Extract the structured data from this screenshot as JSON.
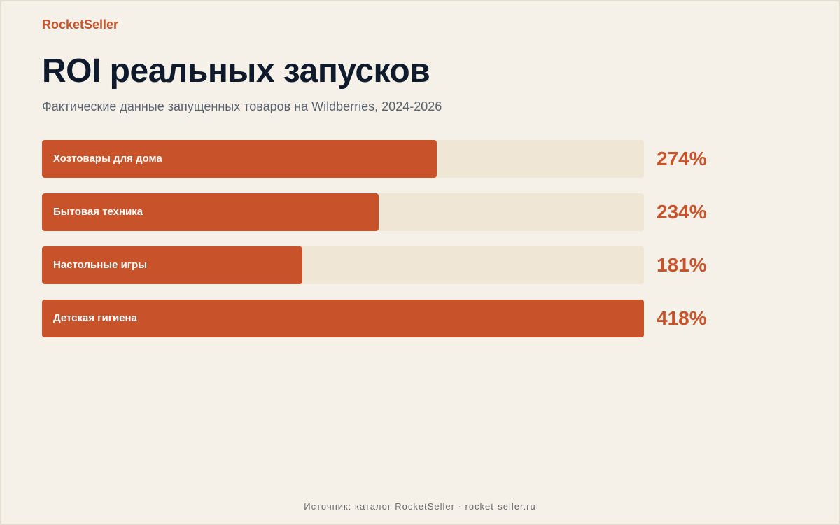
{
  "brand": "RocketSeller",
  "title": "ROI реальных запусков",
  "subtitle": "Фактические данные запущенных товаров на Wildberries, 2024-2026",
  "footer": "Источник: каталог RocketSeller · rocket-seller.ru",
  "colors": {
    "accent": "#c8522a",
    "track": "#efe6d6",
    "background": "#f5f0e8",
    "title": "#0f1b2d"
  },
  "chart_data": {
    "type": "bar",
    "orientation": "horizontal",
    "categories": [
      "Хозтовары для дома",
      "Бытовая техника",
      "Настольные игры",
      "Детская гигиена"
    ],
    "values": [
      274,
      234,
      181,
      418
    ],
    "value_labels": [
      "274%",
      "234%",
      "181%",
      "418%"
    ],
    "xlim": [
      0,
      418
    ]
  }
}
